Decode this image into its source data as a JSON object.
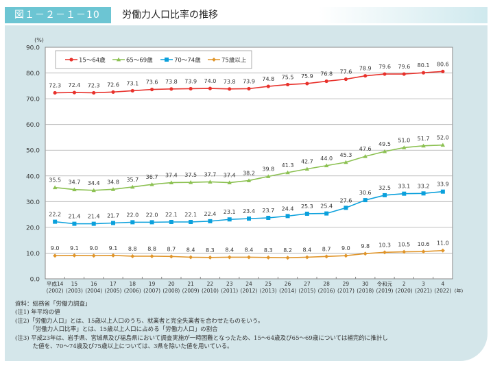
{
  "header": {
    "figure_number": "図１－２－１－10",
    "title": "労働力人口比率の推移"
  },
  "chart_data": {
    "type": "line",
    "yunit": "(%)",
    "xunit": "(年)",
    "ylim": [
      0,
      90
    ],
    "yticks": [
      "0.0",
      "10.0",
      "20.0",
      "30.0",
      "40.0",
      "50.0",
      "60.0",
      "70.0",
      "80.0",
      "90.0"
    ],
    "grid": true,
    "legend_position": "top-left",
    "categories": [
      [
        "平成14",
        "(2002)"
      ],
      [
        "15",
        "(2003)"
      ],
      [
        "16",
        "(2004)"
      ],
      [
        "17",
        "(2005)"
      ],
      [
        "18",
        "(2006)"
      ],
      [
        "19",
        "(2007)"
      ],
      [
        "20",
        "(2008)"
      ],
      [
        "21",
        "(2009)"
      ],
      [
        "22",
        "(2010)"
      ],
      [
        "23",
        "(2011)"
      ],
      [
        "24",
        "(2012)"
      ],
      [
        "25",
        "(2013)"
      ],
      [
        "26",
        "(2014)"
      ],
      [
        "27",
        "(2015)"
      ],
      [
        "28",
        "(2016)"
      ],
      [
        "29",
        "(2017)"
      ],
      [
        "30",
        "(2018)"
      ],
      [
        "令和元",
        "(2019)"
      ],
      [
        "2",
        "(2020)"
      ],
      [
        "3",
        "(2021)"
      ],
      [
        "4",
        "(2022)"
      ]
    ],
    "series": [
      {
        "name": "15～64歳",
        "color": "#e8322c",
        "marker": "circle",
        "values": [
          72.3,
          72.4,
          72.3,
          72.6,
          73.1,
          73.6,
          73.8,
          73.9,
          74.0,
          73.8,
          73.9,
          74.8,
          75.5,
          75.9,
          76.8,
          77.6,
          78.9,
          79.6,
          79.6,
          80.1,
          80.6
        ]
      },
      {
        "name": "65～69歳",
        "color": "#8cc152",
        "marker": "triangle",
        "values": [
          35.5,
          34.7,
          34.4,
          34.8,
          35.7,
          36.7,
          37.4,
          37.5,
          37.7,
          37.4,
          38.2,
          39.8,
          41.3,
          42.7,
          44.0,
          45.3,
          47.6,
          49.5,
          51.0,
          51.7,
          52.0
        ]
      },
      {
        "name": "70～74歳",
        "color": "#0aa0dc",
        "marker": "square",
        "values": [
          22.2,
          21.4,
          21.4,
          21.7,
          22.0,
          22.0,
          22.1,
          22.1,
          22.4,
          23.1,
          23.4,
          23.7,
          24.4,
          25.3,
          25.4,
          27.6,
          30.6,
          32.5,
          33.1,
          33.2,
          33.9
        ]
      },
      {
        "name": "75歳以上",
        "color": "#e0952a",
        "marker": "diamond",
        "values": [
          9.0,
          9.1,
          9.0,
          9.1,
          8.8,
          8.8,
          8.7,
          8.4,
          8.3,
          8.4,
          8.4,
          8.3,
          8.2,
          8.4,
          8.7,
          9.0,
          9.8,
          10.3,
          10.5,
          10.6,
          11.0
        ]
      }
    ]
  },
  "notes": [
    "資料：総務省「労働力調査」",
    "(注1) 年平均の値",
    "(注2)「労働力人口」とは、15歳以上人口のうち、就業者と完全失業者を合わせたものをいう。",
    "　　　「労働力人口比率」とは、15歳以上人口に占める「労働力人口」の割合",
    "(注3) 平成23年は、岩手県、宮城県及び福島県において調査実施が一時困難となったため、15～64歳及び65～69歳については補完的に推計し",
    "　　　た値を、70～74歳及び75歳以上については、3県を除いた値を用いている。"
  ]
}
